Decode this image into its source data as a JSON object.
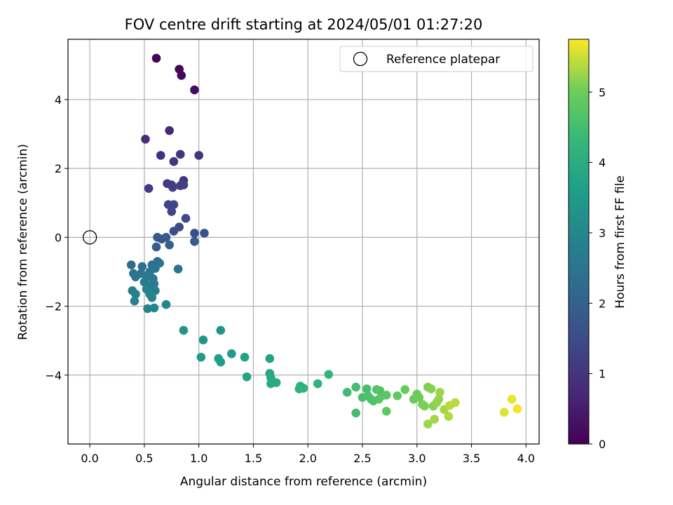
{
  "chart_data": {
    "type": "scatter",
    "title": "FOV centre drift starting at 2024/05/01 01:27:20",
    "xlabel": "Angular distance from reference (arcmin)",
    "ylabel": "Rotation from reference (arcmin)",
    "xlim": [
      -0.2,
      4.12
    ],
    "ylim": [
      -6.0,
      5.75
    ],
    "xticks": [
      0.0,
      0.5,
      1.0,
      1.5,
      2.0,
      2.5,
      3.0,
      3.5,
      4.0
    ],
    "xtick_labels": [
      "0.0",
      "0.5",
      "1.0",
      "1.5",
      "2.0",
      "2.5",
      "3.0",
      "3.5",
      "4.0"
    ],
    "yticks": [
      -4,
      -2,
      0,
      2,
      4
    ],
    "ytick_labels": [
      "−4",
      "−2",
      "0",
      "2",
      "4"
    ],
    "grid": true,
    "colormap": "viridis",
    "colorbar": {
      "label": "Hours from first FF file",
      "min": 0,
      "max": 5.75,
      "ticks": [
        0,
        1,
        2,
        3,
        4,
        5
      ],
      "tick_labels": [
        "0",
        "1",
        "2",
        "3",
        "4",
        "5"
      ]
    },
    "legend": {
      "placement": "top-right",
      "entries": [
        "Reference platepar"
      ]
    },
    "reference_point": {
      "x": 0.0,
      "y": 0.0,
      "marker": "open-circle",
      "color": "#000000"
    },
    "points": [
      {
        "x": 0.61,
        "y": 5.2,
        "c": 0.05
      },
      {
        "x": 0.82,
        "y": 4.88,
        "c": 0.1
      },
      {
        "x": 0.84,
        "y": 4.7,
        "c": 0.15
      },
      {
        "x": 0.96,
        "y": 4.28,
        "c": 0.2
      },
      {
        "x": 0.73,
        "y": 3.1,
        "c": 0.75
      },
      {
        "x": 0.51,
        "y": 2.85,
        "c": 0.8
      },
      {
        "x": 0.65,
        "y": 2.38,
        "c": 0.9
      },
      {
        "x": 0.83,
        "y": 2.41,
        "c": 0.95
      },
      {
        "x": 1.0,
        "y": 2.38,
        "c": 0.95
      },
      {
        "x": 0.77,
        "y": 2.2,
        "c": 1.0
      },
      {
        "x": 0.86,
        "y": 1.65,
        "c": 1.05
      },
      {
        "x": 0.54,
        "y": 1.42,
        "c": 1.1
      },
      {
        "x": 0.71,
        "y": 1.56,
        "c": 1.1
      },
      {
        "x": 0.75,
        "y": 1.52,
        "c": 1.15
      },
      {
        "x": 0.76,
        "y": 1.45,
        "c": 1.2
      },
      {
        "x": 0.83,
        "y": 1.5,
        "c": 1.2
      },
      {
        "x": 0.86,
        "y": 1.52,
        "c": 1.25
      },
      {
        "x": 0.72,
        "y": 0.95,
        "c": 1.3
      },
      {
        "x": 0.77,
        "y": 0.95,
        "c": 1.35
      },
      {
        "x": 0.75,
        "y": 0.75,
        "c": 1.4
      },
      {
        "x": 0.88,
        "y": 0.55,
        "c": 1.45
      },
      {
        "x": 0.82,
        "y": 0.3,
        "c": 1.5
      },
      {
        "x": 0.77,
        "y": 0.18,
        "c": 1.55
      },
      {
        "x": 0.96,
        "y": 0.12,
        "c": 1.6
      },
      {
        "x": 1.05,
        "y": 0.12,
        "c": 1.65
      },
      {
        "x": 0.62,
        "y": 0.0,
        "c": 1.8
      },
      {
        "x": 0.66,
        "y": -0.05,
        "c": 1.8
      },
      {
        "x": 0.7,
        "y": 0.0,
        "c": 1.85
      },
      {
        "x": 0.96,
        "y": -0.12,
        "c": 1.85
      },
      {
        "x": 0.61,
        "y": -0.28,
        "c": 1.9
      },
      {
        "x": 0.73,
        "y": -0.22,
        "c": 1.95
      },
      {
        "x": 0.38,
        "y": -0.8,
        "c": 2.3
      },
      {
        "x": 0.48,
        "y": -0.85,
        "c": 2.35
      },
      {
        "x": 0.57,
        "y": -0.8,
        "c": 2.35
      },
      {
        "x": 0.62,
        "y": -0.7,
        "c": 2.4
      },
      {
        "x": 0.64,
        "y": -0.75,
        "c": 2.45
      },
      {
        "x": 0.6,
        "y": -0.9,
        "c": 2.45
      },
      {
        "x": 0.81,
        "y": -0.92,
        "c": 2.5
      },
      {
        "x": 0.4,
        "y": -1.05,
        "c": 2.5
      },
      {
        "x": 0.42,
        "y": -1.15,
        "c": 2.55
      },
      {
        "x": 0.47,
        "y": -1.05,
        "c": 2.55
      },
      {
        "x": 0.52,
        "y": -1.15,
        "c": 2.6
      },
      {
        "x": 0.55,
        "y": -1.0,
        "c": 2.6
      },
      {
        "x": 0.58,
        "y": -1.2,
        "c": 2.65
      },
      {
        "x": 0.5,
        "y": -1.3,
        "c": 2.65
      },
      {
        "x": 0.54,
        "y": -1.4,
        "c": 2.7
      },
      {
        "x": 0.59,
        "y": -1.35,
        "c": 2.7
      },
      {
        "x": 0.52,
        "y": -1.5,
        "c": 2.75
      },
      {
        "x": 0.56,
        "y": -1.55,
        "c": 2.75
      },
      {
        "x": 0.6,
        "y": -1.55,
        "c": 2.8
      },
      {
        "x": 0.39,
        "y": -1.55,
        "c": 2.8
      },
      {
        "x": 0.42,
        "y": -1.65,
        "c": 2.85
      },
      {
        "x": 0.55,
        "y": -1.65,
        "c": 2.85
      },
      {
        "x": 0.57,
        "y": -1.75,
        "c": 2.9
      },
      {
        "x": 0.41,
        "y": -1.85,
        "c": 2.9
      },
      {
        "x": 0.53,
        "y": -2.07,
        "c": 2.95
      },
      {
        "x": 0.59,
        "y": -2.05,
        "c": 2.95
      },
      {
        "x": 0.7,
        "y": -1.95,
        "c": 3.0
      },
      {
        "x": 0.86,
        "y": -2.7,
        "c": 3.3
      },
      {
        "x": 1.2,
        "y": -2.7,
        "c": 3.35
      },
      {
        "x": 1.04,
        "y": -2.98,
        "c": 3.4
      },
      {
        "x": 1.3,
        "y": -3.38,
        "c": 3.5
      },
      {
        "x": 1.02,
        "y": -3.48,
        "c": 3.55
      },
      {
        "x": 1.18,
        "y": -3.52,
        "c": 3.6
      },
      {
        "x": 1.2,
        "y": -3.62,
        "c": 3.6
      },
      {
        "x": 1.42,
        "y": -3.48,
        "c": 3.7
      },
      {
        "x": 1.65,
        "y": -3.52,
        "c": 3.75
      },
      {
        "x": 1.44,
        "y": -4.05,
        "c": 3.8
      },
      {
        "x": 1.65,
        "y": -3.95,
        "c": 3.85
      },
      {
        "x": 1.66,
        "y": -4.08,
        "c": 3.9
      },
      {
        "x": 1.67,
        "y": -4.18,
        "c": 3.9
      },
      {
        "x": 1.71,
        "y": -4.22,
        "c": 3.95
      },
      {
        "x": 1.66,
        "y": -4.25,
        "c": 4.0
      },
      {
        "x": 1.93,
        "y": -4.32,
        "c": 4.1
      },
      {
        "x": 1.92,
        "y": -4.4,
        "c": 4.15
      },
      {
        "x": 1.96,
        "y": -4.38,
        "c": 4.15
      },
      {
        "x": 2.09,
        "y": -4.25,
        "c": 4.2
      },
      {
        "x": 2.19,
        "y": -3.98,
        "c": 4.25
      },
      {
        "x": 2.36,
        "y": -4.5,
        "c": 4.45
      },
      {
        "x": 2.44,
        "y": -4.35,
        "c": 4.5
      },
      {
        "x": 2.5,
        "y": -4.65,
        "c": 4.55
      },
      {
        "x": 2.54,
        "y": -4.4,
        "c": 4.55
      },
      {
        "x": 2.55,
        "y": -4.6,
        "c": 4.6
      },
      {
        "x": 2.58,
        "y": -4.7,
        "c": 4.6
      },
      {
        "x": 2.6,
        "y": -4.75,
        "c": 4.65
      },
      {
        "x": 2.63,
        "y": -4.42,
        "c": 4.65
      },
      {
        "x": 2.66,
        "y": -4.45,
        "c": 4.7
      },
      {
        "x": 2.68,
        "y": -4.6,
        "c": 4.7
      },
      {
        "x": 2.65,
        "y": -4.7,
        "c": 4.75
      },
      {
        "x": 2.72,
        "y": -4.58,
        "c": 4.8
      },
      {
        "x": 2.44,
        "y": -5.1,
        "c": 4.5
      },
      {
        "x": 2.72,
        "y": -5.05,
        "c": 4.8
      },
      {
        "x": 2.82,
        "y": -4.6,
        "c": 4.85
      },
      {
        "x": 2.89,
        "y": -4.42,
        "c": 4.9
      },
      {
        "x": 2.97,
        "y": -4.7,
        "c": 4.95
      },
      {
        "x": 3.0,
        "y": -4.55,
        "c": 5.0
      },
      {
        "x": 3.02,
        "y": -4.65,
        "c": 5.0
      },
      {
        "x": 3.05,
        "y": -4.85,
        "c": 5.05
      },
      {
        "x": 3.07,
        "y": -4.9,
        "c": 5.1
      },
      {
        "x": 3.1,
        "y": -4.35,
        "c": 5.1
      },
      {
        "x": 3.13,
        "y": -4.4,
        "c": 5.15
      },
      {
        "x": 3.15,
        "y": -4.9,
        "c": 5.15
      },
      {
        "x": 3.18,
        "y": -4.8,
        "c": 5.2
      },
      {
        "x": 3.2,
        "y": -4.7,
        "c": 5.2
      },
      {
        "x": 3.21,
        "y": -4.5,
        "c": 5.25
      },
      {
        "x": 3.1,
        "y": -5.42,
        "c": 5.25
      },
      {
        "x": 3.16,
        "y": -5.28,
        "c": 5.3
      },
      {
        "x": 3.25,
        "y": -5.0,
        "c": 5.3
      },
      {
        "x": 3.29,
        "y": -5.2,
        "c": 5.35
      },
      {
        "x": 3.3,
        "y": -4.88,
        "c": 5.4
      },
      {
        "x": 3.35,
        "y": -4.8,
        "c": 5.4
      },
      {
        "x": 3.8,
        "y": -5.08,
        "c": 5.6
      },
      {
        "x": 3.87,
        "y": -4.7,
        "c": 5.65
      },
      {
        "x": 3.92,
        "y": -4.98,
        "c": 5.7
      }
    ]
  }
}
